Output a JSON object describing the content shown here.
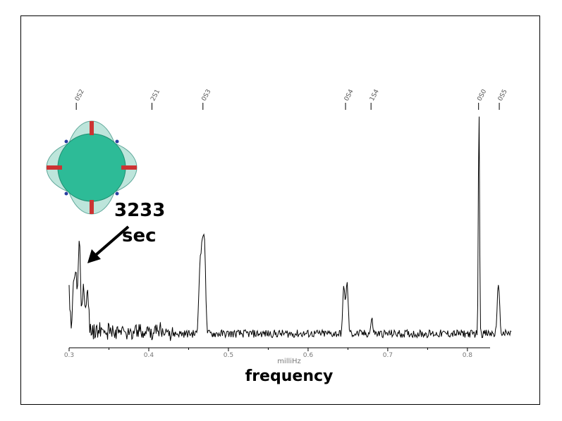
{
  "chart_data": {
    "type": "line",
    "xlabel": "milliHz",
    "xlabel_big": "frequency",
    "xlim": [
      0.3,
      0.855
    ],
    "x_ticks": [
      0.3,
      0.4,
      0.5,
      0.6,
      0.7,
      0.8
    ],
    "x_tick_labels": [
      "0.3",
      "0.4",
      "0.5",
      "0.6",
      "0.7",
      "0.8"
    ],
    "ylim": [
      0,
      1
    ],
    "grid": false,
    "line_color": "#000000",
    "peak_labels": [
      {
        "label": "0S2",
        "x": 0.309
      },
      {
        "label": "2S1",
        "x": 0.404
      },
      {
        "label": "0S3",
        "x": 0.468
      },
      {
        "label": "0S4",
        "x": 0.647
      },
      {
        "label": "1S4",
        "x": 0.679
      },
      {
        "label": "0S0",
        "x": 0.814
      },
      {
        "label": "0S5",
        "x": 0.84
      }
    ],
    "peaks": [
      {
        "x": 0.3,
        "y": 0.16
      },
      {
        "x": 0.306,
        "y": 0.21
      },
      {
        "x": 0.309,
        "y": 0.22
      },
      {
        "x": 0.313,
        "y": 0.41
      },
      {
        "x": 0.318,
        "y": 0.17
      },
      {
        "x": 0.323,
        "y": 0.19
      },
      {
        "x": 0.464,
        "y": 0.28
      },
      {
        "x": 0.467,
        "y": 0.37
      },
      {
        "x": 0.47,
        "y": 0.4
      },
      {
        "x": 0.645,
        "y": 0.21
      },
      {
        "x": 0.649,
        "y": 0.22
      },
      {
        "x": 0.68,
        "y": 0.06
      },
      {
        "x": 0.8145,
        "y": 1.0
      },
      {
        "x": 0.839,
        "y": 0.23
      }
    ],
    "annotation": {
      "value": "3233",
      "unit": "sec",
      "points_to_x": 0.313
    },
    "inset_colors": {
      "fill_dark": "#2dbb97",
      "fill_light": "#a7dccf",
      "bar": "#cc3333",
      "dot": "#2a3fa0"
    }
  }
}
